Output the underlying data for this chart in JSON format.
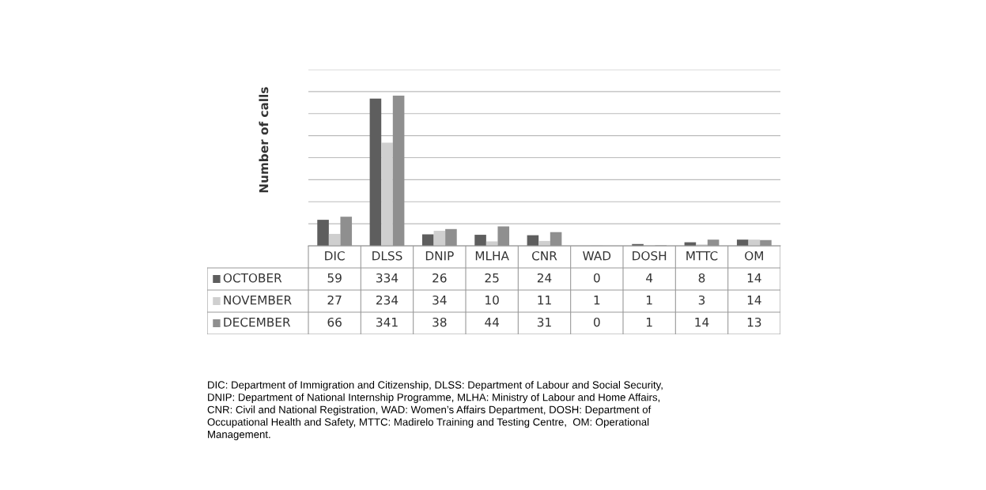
{
  "chart_data": {
    "type": "bar",
    "ylabel": "Number of calls",
    "categories": [
      "DIC",
      "DLSS",
      "DNIP",
      "MLHA",
      "CNR",
      "WAD",
      "DOSH",
      "MTTC",
      "OM"
    ],
    "series": [
      {
        "name": "OCTOBER",
        "color": "#5e5e5e",
        "values": [
          59,
          334,
          26,
          25,
          24,
          0,
          4,
          8,
          14
        ]
      },
      {
        "name": "NOVEMBER",
        "color": "#cfcfcf",
        "values": [
          27,
          234,
          34,
          10,
          11,
          1,
          1,
          3,
          14
        ]
      },
      {
        "name": "DECEMBER",
        "color": "#8f8f8f",
        "values": [
          66,
          341,
          38,
          44,
          31,
          0,
          1,
          14,
          13
        ]
      }
    ],
    "ylim": [
      0,
      400
    ],
    "yticks": [
      {
        "value": 0,
        "label": null
      },
      {
        "value": 50,
        "label": null
      },
      {
        "value": 100,
        "label": null
      },
      {
        "value": 150,
        "label": null
      },
      {
        "value": 200,
        "label": null
      },
      {
        "value": 250,
        "label": null
      },
      {
        "value": 300,
        "label": null
      },
      {
        "value": 350,
        "label": null
      },
      {
        "value": 400,
        "label": null
      }
    ],
    "grid": "y",
    "legend": "bottom",
    "tick_labels": false,
    "data_labels": true,
    "annotations": [
      "DIC: Department of Immigration and Citizenship, DLSS: Department of Labour and Social Security,\nDNIP: Department of National Internship Programme, MLHA: Ministry of Labour and Home Affairs,\nCNR: Civil and National Registration, WAD: Women’s Affairs Department, DOSH: Department of\nOccupational Health and Safety, MTTC: Madirelo Training and Testing Centre,  OM: Operational\nManagement."
    ]
  }
}
